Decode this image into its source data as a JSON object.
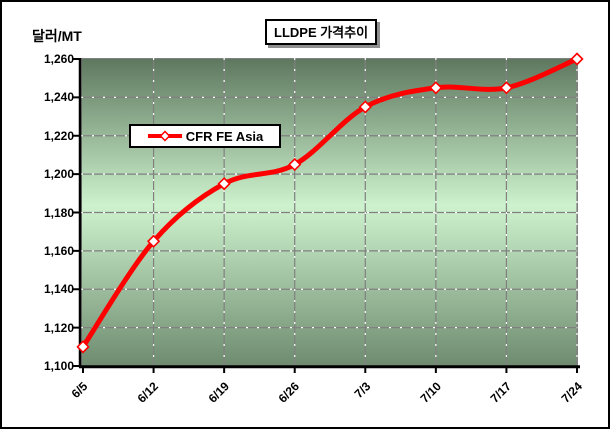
{
  "chart": {
    "unit_label": "달러/MT",
    "legend_label": "CFR FE Asia"
  },
  "chart_data": {
    "type": "line",
    "title": "LLDPE 가격추이",
    "ylabel": "달러/MT",
    "xlabel": "",
    "categories": [
      "6/5",
      "6/12",
      "6/19",
      "6/26",
      "7/3",
      "7/10",
      "7/17",
      "7/24"
    ],
    "series": [
      {
        "name": "CFR FE Asia",
        "values": [
          1110,
          1165,
          1195,
          1205,
          1235,
          1245,
          1245,
          1260
        ],
        "color": "#ff0000",
        "marker": "diamond",
        "marker_fill": "#ffffff",
        "smoothed": true
      }
    ],
    "ylim": [
      1100,
      1260
    ],
    "ytick_step": 20,
    "ytick_labels": [
      "1,100",
      "1,120",
      "1,140",
      "1,160",
      "1,180",
      "1,200",
      "1,220",
      "1,240",
      "1,260"
    ],
    "grid": true,
    "legend_position": "inside-upper-left",
    "colors": {
      "plot_gradient_top": "#5e785f",
      "plot_gradient_mid": "#cdf2cd",
      "plot_gradient_bottom": "#6f8c70",
      "gridline": "#808080",
      "gridline_dot": "#ffffff",
      "axis": "#000000",
      "text": "#000000",
      "background": "#ffffff"
    }
  }
}
